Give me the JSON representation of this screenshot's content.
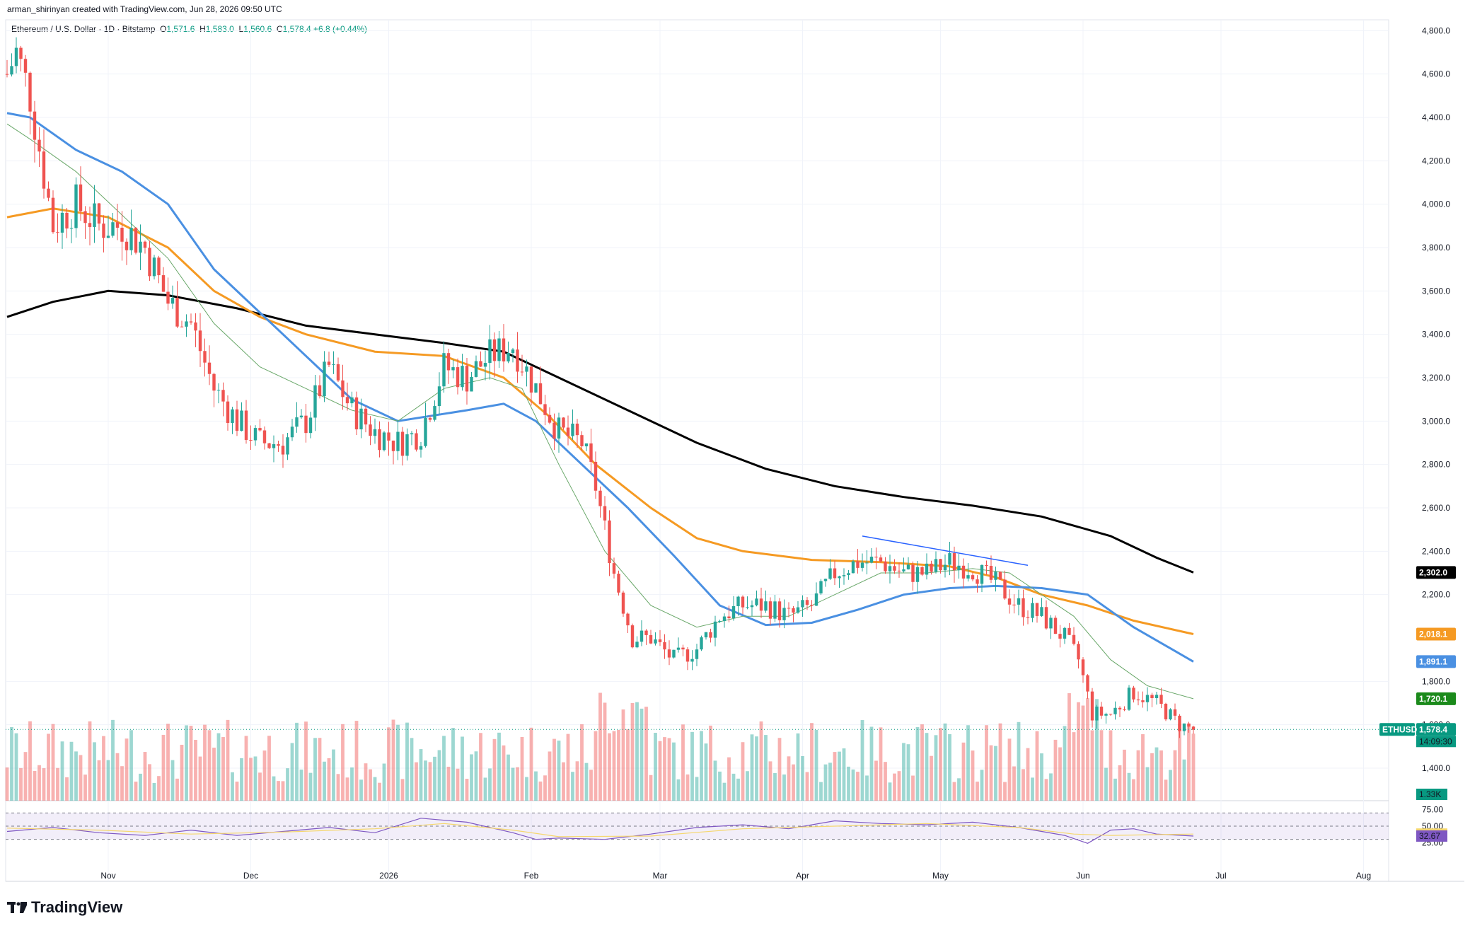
{
  "header": {
    "credit": "arman_shirinyan created with TradingView.com, Jun 28, 2026 09:50 UTC"
  },
  "legend": {
    "symbol": "Ethereum / U.S. Dollar · 1D · Bitstamp",
    "open": "1,571.6",
    "high": "1,583.0",
    "low": "1,560.6",
    "close": "1,578.4",
    "change": "+6.8 (+0.44%)"
  },
  "footer": {
    "brand": "TradingView"
  },
  "chart_data": {
    "type": "candlestick",
    "symbol": "ETHUSD",
    "interval": "1D",
    "ylim": [
      1250,
      4850
    ],
    "y_ticks": [
      "4,800.0",
      "4,600.0",
      "4,400.0",
      "4,200.0",
      "4,000.0",
      "3,800.0",
      "3,600.0",
      "3,400.0",
      "3,200.0",
      "3,000.0",
      "2,800.0",
      "2,600.0",
      "2,400.0",
      "2,200.0",
      "1,800.0",
      "1,600.0",
      "1,400.0"
    ],
    "y_tick_values": [
      4800,
      4600,
      4400,
      4200,
      4000,
      3800,
      3600,
      3400,
      3200,
      3000,
      2800,
      2600,
      2400,
      2200,
      1800,
      1600,
      1400
    ],
    "x_labels": [
      "Nov",
      "Dec",
      "2026",
      "Feb",
      "Mar",
      "Apr",
      "May",
      "Jun",
      "Jul",
      "Aug"
    ],
    "x_label_days": [
      22,
      53,
      83,
      114,
      142,
      173,
      203,
      234,
      264,
      295
    ],
    "last_price": 1578.4,
    "price_tags": [
      {
        "value": 2302.0,
        "label": "2,302.0",
        "color": "#000000"
      },
      {
        "value": 2018.1,
        "label": "2,018.1",
        "color": "#f59a23"
      },
      {
        "value": 1891.1,
        "label": "1,891.1",
        "color": "#4a90e2"
      },
      {
        "value": 1720.1,
        "label": "1,720.1",
        "color": "#1b8a1b"
      },
      {
        "value": 1578.4,
        "label": "1,578.4",
        "color": "#089981"
      }
    ],
    "last_label": "ETHUSD",
    "countdown": "14:09:30",
    "volume_label": "1.33K",
    "moving_averages": [
      {
        "color": "#000000",
        "points": [
          [
            0,
            3480
          ],
          [
            10,
            3550
          ],
          [
            22,
            3600
          ],
          [
            35,
            3580
          ],
          [
            50,
            3520
          ],
          [
            65,
            3440
          ],
          [
            80,
            3400
          ],
          [
            95,
            3360
          ],
          [
            108,
            3320
          ],
          [
            120,
            3200
          ],
          [
            135,
            3050
          ],
          [
            150,
            2900
          ],
          [
            165,
            2780
          ],
          [
            180,
            2700
          ],
          [
            195,
            2650
          ],
          [
            210,
            2610
          ],
          [
            225,
            2560
          ],
          [
            240,
            2470
          ],
          [
            250,
            2370
          ],
          [
            258,
            2302
          ]
        ]
      },
      {
        "color": "#f59a23",
        "points": [
          [
            0,
            3940
          ],
          [
            10,
            3980
          ],
          [
            22,
            3940
          ],
          [
            35,
            3800
          ],
          [
            45,
            3600
          ],
          [
            55,
            3480
          ],
          [
            65,
            3400
          ],
          [
            80,
            3320
          ],
          [
            95,
            3300
          ],
          [
            108,
            3200
          ],
          [
            118,
            3020
          ],
          [
            128,
            2800
          ],
          [
            140,
            2600
          ],
          [
            150,
            2460
          ],
          [
            160,
            2400
          ],
          [
            175,
            2360
          ],
          [
            190,
            2350
          ],
          [
            205,
            2330
          ],
          [
            215,
            2280
          ],
          [
            225,
            2200
          ],
          [
            235,
            2150
          ],
          [
            245,
            2080
          ],
          [
            258,
            2018
          ]
        ]
      },
      {
        "color": "#4a90e2",
        "points": [
          [
            0,
            4420
          ],
          [
            5,
            4400
          ],
          [
            15,
            4250
          ],
          [
            25,
            4150
          ],
          [
            35,
            4000
          ],
          [
            45,
            3700
          ],
          [
            55,
            3500
          ],
          [
            65,
            3300
          ],
          [
            75,
            3100
          ],
          [
            85,
            3000
          ],
          [
            100,
            3050
          ],
          [
            108,
            3080
          ],
          [
            115,
            3000
          ],
          [
            125,
            2800
          ],
          [
            135,
            2600
          ],
          [
            145,
            2380
          ],
          [
            155,
            2150
          ],
          [
            165,
            2060
          ],
          [
            175,
            2070
          ],
          [
            185,
            2130
          ],
          [
            195,
            2200
          ],
          [
            205,
            2230
          ],
          [
            215,
            2240
          ],
          [
            225,
            2230
          ],
          [
            235,
            2200
          ],
          [
            245,
            2050
          ],
          [
            258,
            1891
          ]
        ]
      },
      {
        "color": "#6aa86a",
        "points": [
          [
            0,
            4370
          ],
          [
            5,
            4300
          ],
          [
            15,
            4150
          ],
          [
            25,
            3950
          ],
          [
            35,
            3750
          ],
          [
            45,
            3450
          ],
          [
            55,
            3250
          ],
          [
            65,
            3150
          ],
          [
            75,
            3050
          ],
          [
            85,
            3000
          ],
          [
            95,
            3150
          ],
          [
            105,
            3200
          ],
          [
            112,
            3150
          ],
          [
            120,
            2800
          ],
          [
            130,
            2400
          ],
          [
            140,
            2150
          ],
          [
            150,
            2050
          ],
          [
            160,
            2100
          ],
          [
            170,
            2100
          ],
          [
            180,
            2200
          ],
          [
            190,
            2300
          ],
          [
            200,
            2300
          ],
          [
            210,
            2320
          ],
          [
            218,
            2300
          ],
          [
            225,
            2200
          ],
          [
            232,
            2100
          ],
          [
            240,
            1900
          ],
          [
            248,
            1780
          ],
          [
            258,
            1720
          ]
        ]
      }
    ],
    "rsi": {
      "range": [
        25,
        75
      ],
      "ticks": [
        "75.00",
        "50.00",
        "25.00"
      ],
      "rsi_value": "32.67",
      "ma_value": "37.85",
      "points": [
        [
          0,
          42
        ],
        [
          10,
          48
        ],
        [
          20,
          40
        ],
        [
          30,
          36
        ],
        [
          40,
          44
        ],
        [
          50,
          36
        ],
        [
          60,
          42
        ],
        [
          70,
          48
        ],
        [
          80,
          40
        ],
        [
          90,
          62
        ],
        [
          100,
          56
        ],
        [
          110,
          40
        ],
        [
          115,
          30
        ],
        [
          120,
          32
        ],
        [
          130,
          30
        ],
        [
          140,
          38
        ],
        [
          150,
          48
        ],
        [
          160,
          52
        ],
        [
          170,
          46
        ],
        [
          180,
          58
        ],
        [
          190,
          54
        ],
        [
          200,
          52
        ],
        [
          210,
          56
        ],
        [
          220,
          48
        ],
        [
          230,
          36
        ],
        [
          235,
          24
        ],
        [
          240,
          44
        ],
        [
          245,
          46
        ],
        [
          250,
          38
        ],
        [
          258,
          35
        ]
      ],
      "ma_points": [
        [
          0,
          47
        ],
        [
          20,
          44
        ],
        [
          40,
          38
        ],
        [
          60,
          41
        ],
        [
          80,
          46
        ],
        [
          95,
          54
        ],
        [
          110,
          44
        ],
        [
          120,
          34
        ],
        [
          140,
          35
        ],
        [
          160,
          46
        ],
        [
          180,
          50
        ],
        [
          200,
          54
        ],
        [
          220,
          48
        ],
        [
          232,
          38
        ],
        [
          240,
          36
        ],
        [
          258,
          38
        ]
      ]
    },
    "trendline": [
      [
        186,
        2470
      ],
      [
        222,
        2335
      ]
    ]
  }
}
